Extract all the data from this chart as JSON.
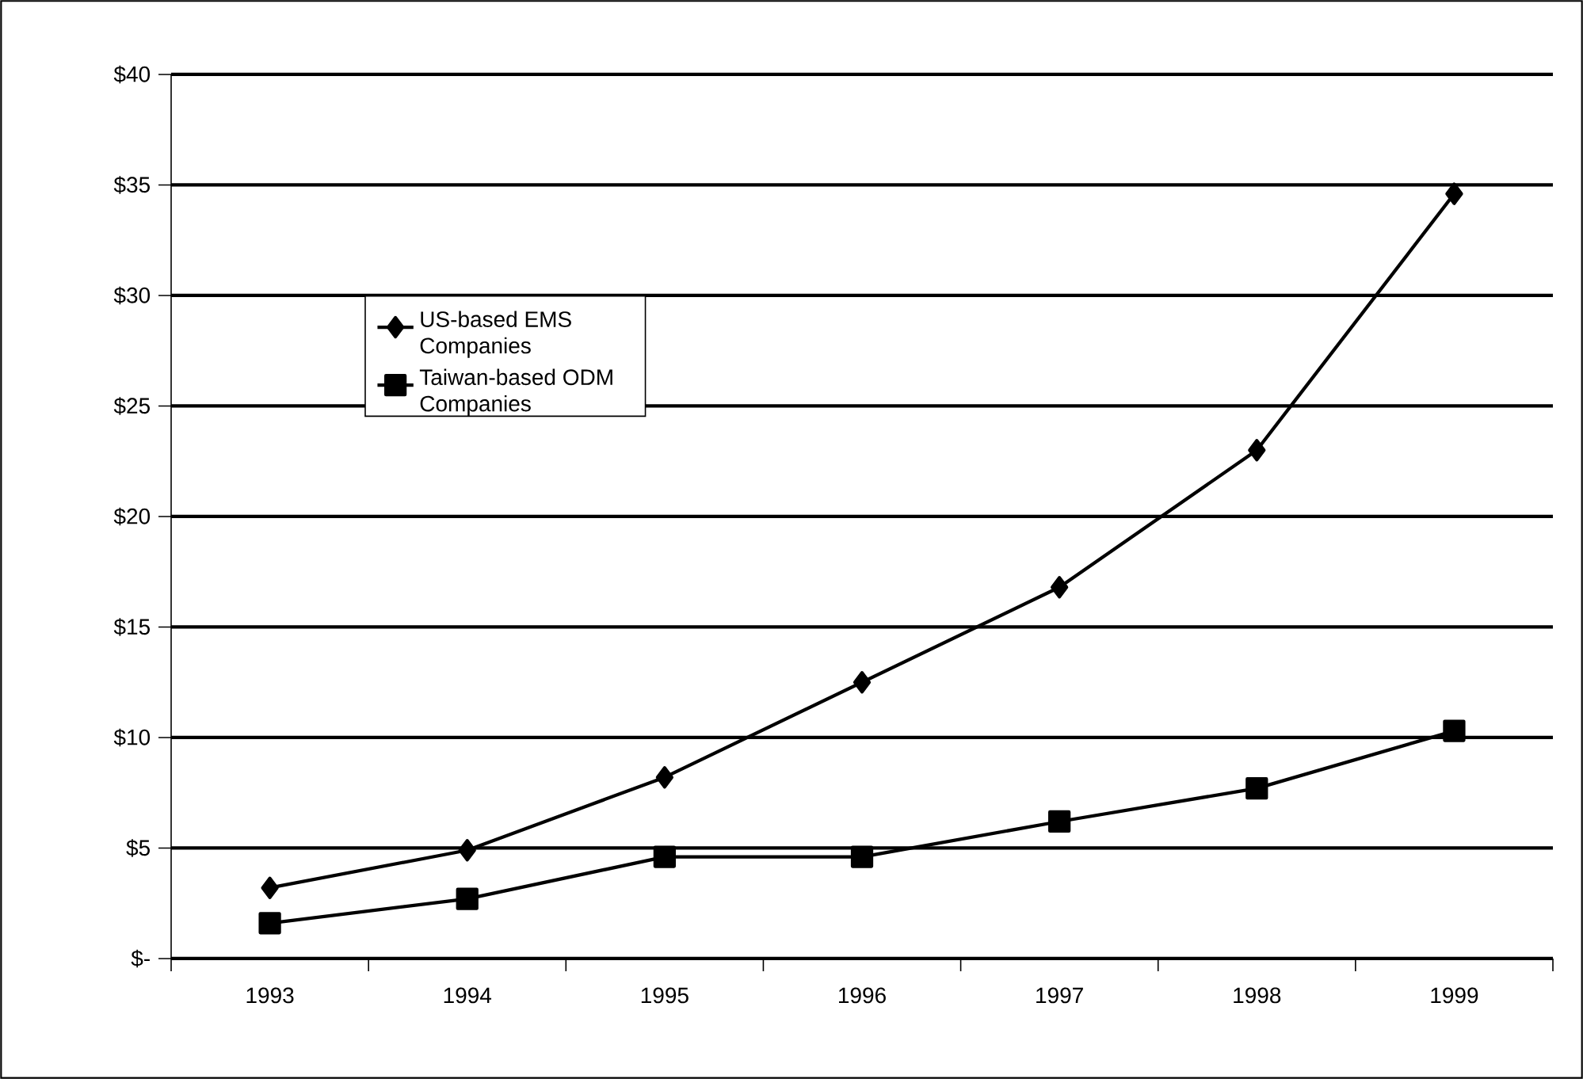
{
  "chart_data": {
    "type": "line",
    "categories": [
      "1993",
      "1994",
      "1995",
      "1996",
      "1997",
      "1998",
      "1999"
    ],
    "series": [
      {
        "name": "US-based EMS Companies",
        "color": "#000000",
        "marker": "diamond",
        "values": [
          3.2,
          4.9,
          8.2,
          12.5,
          16.8,
          23.0,
          34.6
        ]
      },
      {
        "name": "Taiwan-based ODM Companies",
        "color": "#000000",
        "marker": "square",
        "values": [
          1.6,
          2.7,
          4.6,
          4.6,
          6.2,
          7.7,
          10.3
        ]
      }
    ],
    "ylim": [
      0,
      40
    ],
    "yticks": [
      {
        "value": 0,
        "label": "$-"
      },
      {
        "value": 5,
        "label": "$5"
      },
      {
        "value": 10,
        "label": "$10"
      },
      {
        "value": 15,
        "label": "$15"
      },
      {
        "value": 20,
        "label": "$20"
      },
      {
        "value": 25,
        "label": "$25"
      },
      {
        "value": 30,
        "label": "$30"
      },
      {
        "value": 35,
        "label": "$35"
      },
      {
        "value": 40,
        "label": "$40"
      }
    ],
    "grid": "y",
    "legend": "left",
    "line_style": "solid"
  }
}
